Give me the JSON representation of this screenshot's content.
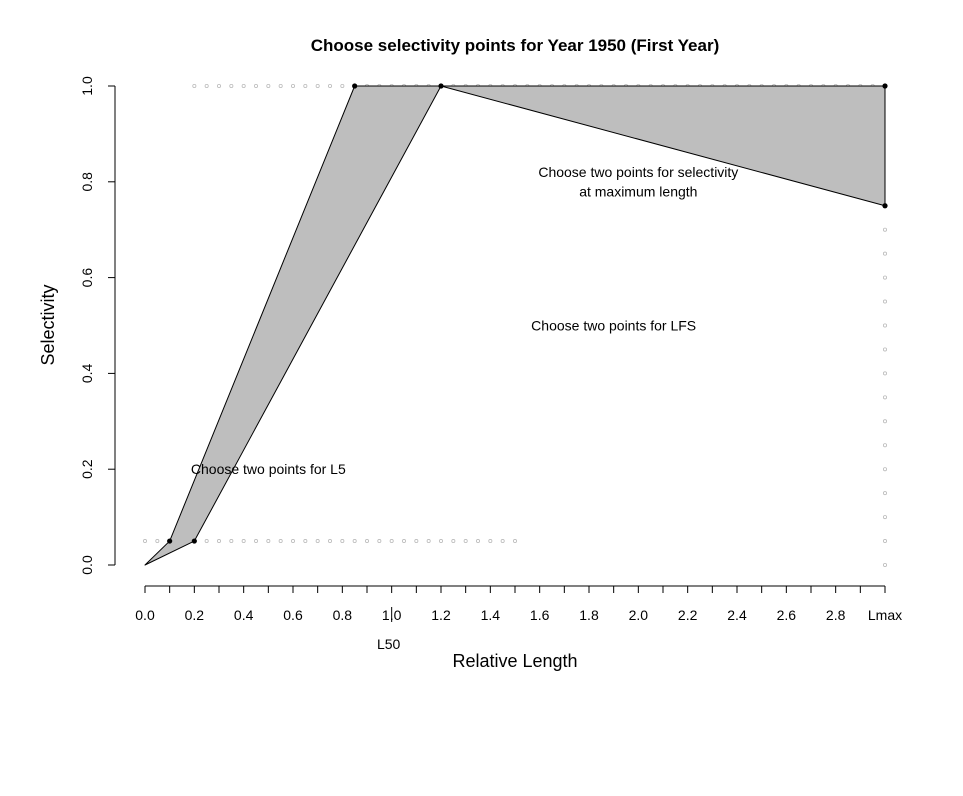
{
  "chart_data": {
    "type": "area",
    "title": "Choose selectivity points for Year 1950 (First Year)",
    "xlabel": "Relative Length",
    "ylabel": "Selectivity",
    "xlim": [
      0,
      3
    ],
    "ylim": [
      0,
      1
    ],
    "x_ticks": [
      {
        "value": 0.0,
        "label": "0.0"
      },
      {
        "value": 0.2,
        "label": "0.2"
      },
      {
        "value": 0.4,
        "label": "0.4"
      },
      {
        "value": 0.6,
        "label": "0.6"
      },
      {
        "value": 0.8,
        "label": "0.8"
      },
      {
        "value": 1.0,
        "label": "1.0"
      },
      {
        "value": 1.2,
        "label": "1.2"
      },
      {
        "value": 1.4,
        "label": "1.4"
      },
      {
        "value": 1.6,
        "label": "1.6"
      },
      {
        "value": 1.8,
        "label": "1.8"
      },
      {
        "value": 2.0,
        "label": "2.0"
      },
      {
        "value": 2.2,
        "label": "2.2"
      },
      {
        "value": 2.4,
        "label": "2.4"
      },
      {
        "value": 2.6,
        "label": "2.6"
      },
      {
        "value": 2.8,
        "label": "2.8"
      },
      {
        "value": 3.0,
        "label": "Lmax"
      }
    ],
    "x_minor_ticks": [
      0.1,
      0.3,
      0.5,
      0.7,
      0.9,
      1.1,
      1.3,
      1.5,
      1.7,
      1.9,
      2.1,
      2.3,
      2.5,
      2.7,
      2.9
    ],
    "y_ticks": [
      {
        "value": 0.0,
        "label": "0.0"
      },
      {
        "value": 0.2,
        "label": "0.2"
      },
      {
        "value": 0.4,
        "label": "0.4"
      },
      {
        "value": 0.6,
        "label": "0.6"
      },
      {
        "value": 0.8,
        "label": "0.8"
      },
      {
        "value": 1.0,
        "label": "1.0"
      }
    ],
    "polygon": [
      [
        0,
        0
      ],
      [
        0.1,
        0.05
      ],
      [
        0.85,
        1.0
      ],
      [
        1.2,
        1.0
      ],
      [
        3.0,
        1.0
      ],
      [
        3.0,
        0.75
      ],
      [
        1.2,
        1.0
      ],
      [
        0.2,
        0.05
      ]
    ],
    "polygon_color": "#bebebe",
    "points": [
      [
        0.1,
        0.05
      ],
      [
        0.2,
        0.05
      ],
      [
        0.85,
        1.0
      ],
      [
        1.2,
        1.0
      ],
      [
        3.0,
        1.0
      ],
      [
        3.0,
        0.75
      ]
    ],
    "candidate_rows": [
      {
        "y": 0.05,
        "x_from": 0.0,
        "x_to": 1.5,
        "step": 0.05
      },
      {
        "y": 1.0,
        "x_from": 0.2,
        "x_to": 3.0,
        "step": 0.05
      }
    ],
    "candidate_column": {
      "x": 3.0,
      "y_from": 0.0,
      "y_to": 0.7,
      "step": 0.05
    },
    "candidate_color": "#bbbbbb",
    "l50": {
      "value": 1.0,
      "label": "L50"
    },
    "annotations": [
      {
        "text": "Choose two points for L5",
        "x": 0.5,
        "y": 0.2
      },
      {
        "text": "Choose two points for LFS",
        "x": 1.9,
        "y": 0.5
      },
      {
        "text": "Choose two points for selectivity",
        "x": 2.0,
        "y": 0.82
      },
      {
        "text": "at maximum length",
        "x": 2.0,
        "y": 0.78
      }
    ]
  }
}
